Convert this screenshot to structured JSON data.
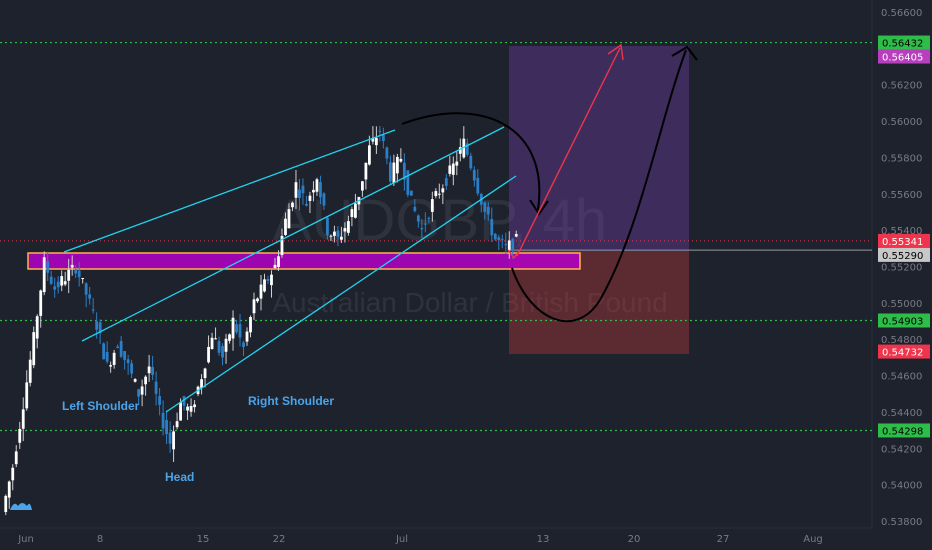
{
  "chart_data": {
    "type": "candlestick",
    "symbol_watermark": "AUDGBP, 4h",
    "watermark_subtitle": "Australian Dollar / British Pound",
    "ylim": [
      0.5378,
      0.5672
    ],
    "y_ticks": [
      0.538,
      0.54,
      0.542,
      0.544,
      0.546,
      0.548,
      0.55,
      0.552,
      0.554,
      0.556,
      0.558,
      0.56,
      0.562,
      0.564,
      0.566
    ],
    "x_ticks": [
      "Jun",
      "8",
      "15",
      "22",
      "Jul",
      "13",
      "20",
      "27",
      "Aug"
    ],
    "price_tags": [
      {
        "value": "0.56432",
        "price": 0.56432,
        "color": "#2ebd48",
        "text_color": "#000000"
      },
      {
        "value": "0.56405",
        "price": 0.56405,
        "color": "#b83dbf",
        "text_color": "#ffffff"
      },
      {
        "value": "0.55341",
        "price": 0.55341,
        "color": "#f0344b",
        "text_color": "#ffffff"
      },
      {
        "value": "0.55290",
        "price": 0.5529,
        "color": "#c8c8c8",
        "text_color": "#000000"
      },
      {
        "value": "0.54903",
        "price": 0.54903,
        "color": "#2ebd48",
        "text_color": "#000000"
      },
      {
        "value": "0.54732",
        "price": 0.54732,
        "color": "#f0344b",
        "text_color": "#ffffff"
      },
      {
        "value": "0.54298",
        "price": 0.54298,
        "color": "#2ebd48",
        "text_color": "#000000"
      }
    ],
    "horizontal_levels": [
      0.56432,
      0.54903,
      0.54298
    ],
    "current_price": 0.55341,
    "annotations": [
      "Left Shoulder",
      "Head",
      "Right Shoulder"
    ],
    "series": [
      {
        "x": 0,
        "y": 0.5385
      },
      {
        "x": 1,
        "y": 0.541
      },
      {
        "x": 2,
        "y": 0.5445
      },
      {
        "x": 3,
        "y": 0.548
      },
      {
        "x": 4,
        "y": 0.5522
      },
      {
        "x": 5,
        "y": 0.5508
      },
      {
        "x": 6,
        "y": 0.5514
      },
      {
        "x": 7,
        "y": 0.552
      },
      {
        "x": 8,
        "y": 0.5505
      },
      {
        "x": 9,
        "y": 0.5488
      },
      {
        "x": 10,
        "y": 0.5465
      },
      {
        "x": 11,
        "y": 0.5478
      },
      {
        "x": 12,
        "y": 0.5465
      },
      {
        "x": 13,
        "y": 0.545
      },
      {
        "x": 14,
        "y": 0.5465
      },
      {
        "x": 15,
        "y": 0.544
      },
      {
        "x": 16,
        "y": 0.5423
      },
      {
        "x": 17,
        "y": 0.5445
      },
      {
        "x": 18,
        "y": 0.544
      },
      {
        "x": 19,
        "y": 0.546
      },
      {
        "x": 20,
        "y": 0.5483
      },
      {
        "x": 21,
        "y": 0.547
      },
      {
        "x": 22,
        "y": 0.549
      },
      {
        "x": 23,
        "y": 0.5475
      },
      {
        "x": 24,
        "y": 0.55
      },
      {
        "x": 25,
        "y": 0.551
      },
      {
        "x": 26,
        "y": 0.552
      },
      {
        "x": 27,
        "y": 0.5545
      },
      {
        "x": 28,
        "y": 0.5565
      },
      {
        "x": 29,
        "y": 0.5555
      },
      {
        "x": 30,
        "y": 0.557
      },
      {
        "x": 31,
        "y": 0.554
      },
      {
        "x": 32,
        "y": 0.5535
      },
      {
        "x": 33,
        "y": 0.5545
      },
      {
        "x": 34,
        "y": 0.556
      },
      {
        "x": 35,
        "y": 0.5585
      },
      {
        "x": 36,
        "y": 0.5595
      },
      {
        "x": 37,
        "y": 0.557
      },
      {
        "x": 38,
        "y": 0.558
      },
      {
        "x": 39,
        "y": 0.5555
      },
      {
        "x": 40,
        "y": 0.554
      },
      {
        "x": 41,
        "y": 0.5555
      },
      {
        "x": 42,
        "y": 0.5565
      },
      {
        "x": 43,
        "y": 0.5575
      },
      {
        "x": 44,
        "y": 0.5588
      },
      {
        "x": 45,
        "y": 0.557
      },
      {
        "x": 46,
        "y": 0.555
      },
      {
        "x": 47,
        "y": 0.5535
      },
      {
        "x": 48,
        "y": 0.553
      },
      {
        "x": 49,
        "y": 0.5534
      }
    ]
  }
}
